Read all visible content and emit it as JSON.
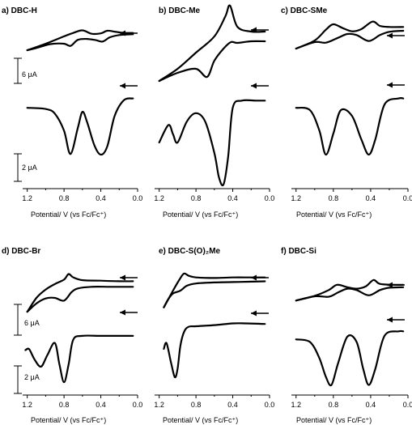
{
  "chart_data": [
    {
      "panel": "a",
      "title": "a) DBC-H",
      "type": "line",
      "xlabel": "Potential/ V (vs Fc/Fc⁺)",
      "xlim": [
        1.25,
        0.0
      ],
      "x_ticks": [
        "1.2",
        "0.8",
        "0.4",
        "0.0"
      ],
      "scale_bars": [
        "6 μA",
        "2 μA"
      ],
      "series": [
        {
          "kind": "cv_forward",
          "x": [
            1.2,
            1.0,
            0.8,
            0.7,
            0.6,
            0.5,
            0.4,
            0.33,
            0.25,
            0.15,
            0.05
          ],
          "y": [
            -3.0,
            -1.5,
            0.2,
            1.0,
            1.6,
            0.8,
            0.9,
            1.5,
            1.3,
            1.0,
            1.0
          ]
        },
        {
          "kind": "cv_reverse",
          "x": [
            0.05,
            0.2,
            0.3,
            0.38,
            0.45,
            0.55,
            0.65,
            0.73,
            0.8,
            0.95,
            1.1,
            1.2
          ],
          "y": [
            0.7,
            0.5,
            0.0,
            -1.0,
            -0.7,
            -0.4,
            -0.6,
            -2.0,
            -1.5,
            -1.6,
            -2.5,
            -3.0
          ]
        },
        {
          "kind": "dpv",
          "x": [
            1.2,
            1.0,
            0.9,
            0.8,
            0.73,
            0.65,
            0.6,
            0.55,
            0.47,
            0.4,
            0.33,
            0.25,
            0.15,
            0.05
          ],
          "y": [
            -1.6,
            -1.8,
            -2.6,
            -5.5,
            -9.5,
            -5.0,
            -2.3,
            -4.0,
            -8.0,
            -9.6,
            -8.2,
            -3.0,
            -0.3,
            0.0
          ]
        }
      ]
    },
    {
      "panel": "b",
      "title": "b) DBC-Me",
      "type": "line",
      "xlabel": "Potential/ V (vs Fc/Fc⁺)",
      "xlim": [
        1.25,
        0.0
      ],
      "x_ticks": [
        "1.2",
        "0.8",
        "0.4",
        "0.0"
      ],
      "series": [
        {
          "kind": "cv_forward",
          "x": [
            1.2,
            1.0,
            0.8,
            0.6,
            0.48,
            0.43,
            0.35,
            0.2,
            0.05
          ],
          "y": [
            -5.5,
            -4.0,
            -2.0,
            0.0,
            2.5,
            3.8,
            1.2,
            0.6,
            0.6
          ]
        },
        {
          "kind": "cv_reverse",
          "x": [
            0.05,
            0.2,
            0.35,
            0.42,
            0.5,
            0.6,
            0.68,
            0.8,
            1.0,
            1.2
          ],
          "y": [
            -0.6,
            -0.6,
            -0.8,
            -0.7,
            -1.5,
            -3.0,
            -5.0,
            -4.0,
            -4.5,
            -5.5
          ]
        },
        {
          "kind": "dpv",
          "x": [
            1.2,
            1.1,
            1.05,
            1.0,
            0.9,
            0.8,
            0.7,
            0.6,
            0.55,
            0.5,
            0.45,
            0.4,
            0.3,
            0.15,
            0.05
          ],
          "y": [
            -6.0,
            -3.5,
            -4.8,
            -6.0,
            -3.0,
            -1.8,
            -3.0,
            -7.5,
            -11.0,
            -12.0,
            -8.0,
            -1.0,
            0.0,
            0.0,
            0.0
          ]
        }
      ]
    },
    {
      "panel": "c",
      "title": "c) DBC-SMe",
      "type": "line",
      "xlabel": "Potential/ V (vs Fc/Fc⁺)",
      "xlim": [
        1.25,
        0.0
      ],
      "x_ticks": [
        "1.2",
        "0.8",
        "0.4",
        "0.0"
      ],
      "series": [
        {
          "kind": "cv_forward",
          "x": [
            1.2,
            1.0,
            0.88,
            0.8,
            0.7,
            0.6,
            0.5,
            0.38,
            0.3,
            0.2,
            0.05
          ],
          "y": [
            -3.0,
            -1.5,
            0.5,
            1.5,
            0.8,
            0.2,
            0.6,
            2.0,
            1.2,
            1.0,
            1.0
          ]
        },
        {
          "kind": "cv_reverse",
          "x": [
            0.05,
            0.2,
            0.3,
            0.42,
            0.55,
            0.65,
            0.75,
            0.88,
            1.0,
            1.2
          ],
          "y": [
            0.3,
            0.1,
            -0.5,
            -1.6,
            -0.5,
            -0.3,
            -1.0,
            -1.9,
            -1.8,
            -3.0
          ]
        },
        {
          "kind": "dpv",
          "x": [
            1.2,
            1.05,
            0.95,
            0.88,
            0.8,
            0.72,
            0.6,
            0.5,
            0.42,
            0.35,
            0.25,
            0.1,
            0.05
          ],
          "y": [
            -1.6,
            -2.0,
            -5.5,
            -9.6,
            -6.0,
            -2.0,
            -3.0,
            -7.0,
            -9.6,
            -7.0,
            -1.0,
            0.0,
            0.0
          ]
        }
      ]
    },
    {
      "panel": "d",
      "title": "d) DBC-Br",
      "type": "line",
      "xlabel": "Potential/ V (vs Fc/Fc⁺)",
      "xlim": [
        1.25,
        0.0
      ],
      "x_ticks": [
        "1.2",
        "0.8",
        "0.4",
        "0.0"
      ],
      "scale_bars": [
        "6 μA",
        "2 μA"
      ],
      "series": [
        {
          "kind": "cv_forward",
          "x": [
            1.2,
            1.1,
            1.0,
            0.9,
            0.8,
            0.75,
            0.7,
            0.6,
            0.4,
            0.2,
            0.05
          ],
          "y": [
            -5.0,
            -2.5,
            -1.0,
            0.0,
            0.8,
            1.8,
            1.2,
            0.7,
            0.6,
            0.5,
            0.5
          ]
        },
        {
          "kind": "cv_reverse",
          "x": [
            0.05,
            0.3,
            0.5,
            0.65,
            0.72,
            0.8,
            0.9,
            1.0,
            1.1,
            1.2
          ],
          "y": [
            -0.5,
            -0.5,
            -0.5,
            -0.8,
            -1.5,
            -3.0,
            -2.5,
            -2.6,
            -3.5,
            -5.0
          ]
        },
        {
          "kind": "dpv",
          "x": [
            1.22,
            1.18,
            1.12,
            1.05,
            0.98,
            0.9,
            0.85,
            0.8,
            0.75,
            0.7,
            0.6,
            0.4,
            0.2,
            0.05
          ],
          "y": [
            -3.0,
            -2.8,
            -5.0,
            -6.5,
            -4.0,
            -1.5,
            -6.0,
            -9.8,
            -6.0,
            -0.8,
            0.0,
            0.0,
            0.0,
            0.0
          ]
        }
      ]
    },
    {
      "panel": "e",
      "title": "e) DBC-S(O)₂Me",
      "type": "line",
      "xlabel": "Potential/ V (vs Fc/Fc⁺)",
      "xlim": [
        1.25,
        0.0
      ],
      "x_ticks": [
        "1.2",
        "0.8",
        "0.4",
        "0.0"
      ],
      "series": [
        {
          "kind": "cv_forward",
          "x": [
            1.15,
            1.05,
            0.98,
            0.93,
            0.88,
            0.8,
            0.6,
            0.4,
            0.2,
            0.05
          ],
          "y": [
            -4.5,
            -1.5,
            0.5,
            1.6,
            1.2,
            0.9,
            0.8,
            0.9,
            0.9,
            0.9
          ]
        },
        {
          "kind": "cv_reverse",
          "x": [
            0.05,
            0.3,
            0.6,
            0.8,
            0.9,
            0.97,
            1.05,
            1.1,
            1.15
          ],
          "y": [
            0.2,
            0.1,
            0.0,
            -0.2,
            -0.6,
            -1.5,
            -2.0,
            -3.0,
            -4.5
          ]
        },
        {
          "kind": "dpv",
          "x": [
            1.15,
            1.12,
            1.07,
            1.03,
            1.0,
            0.97,
            0.93,
            0.88,
            0.8,
            0.6,
            0.4,
            0.25,
            0.05
          ],
          "y": [
            -4.5,
            -3.5,
            -7.0,
            -9.5,
            -8.0,
            -4.0,
            -1.5,
            -0.6,
            -0.5,
            -0.3,
            0.0,
            0.0,
            -0.1
          ]
        }
      ]
    },
    {
      "panel": "f",
      "title": "f) DBC-Si",
      "type": "line",
      "xlabel": "Potential/ V (vs Fc/Fc⁺)",
      "xlim": [
        1.25,
        0.0
      ],
      "x_ticks": [
        "1.2",
        "0.8",
        "0.4",
        "0.0"
      ],
      "series": [
        {
          "kind": "cv_forward",
          "x": [
            1.2,
            1.0,
            0.85,
            0.76,
            0.65,
            0.55,
            0.45,
            0.37,
            0.3,
            0.15,
            0.05
          ],
          "y": [
            -2.5,
            -1.5,
            -0.3,
            0.8,
            0.3,
            0.0,
            0.5,
            1.8,
            1.0,
            0.8,
            0.8
          ]
        },
        {
          "kind": "cv_reverse",
          "x": [
            0.05,
            0.2,
            0.3,
            0.42,
            0.55,
            0.65,
            0.75,
            0.85,
            1.0,
            1.2
          ],
          "y": [
            0.3,
            0.2,
            -0.3,
            -1.4,
            -0.3,
            0.0,
            -0.8,
            -1.7,
            -1.6,
            -2.5
          ]
        },
        {
          "kind": "dpv",
          "x": [
            1.2,
            1.05,
            0.95,
            0.88,
            0.82,
            0.75,
            0.65,
            0.55,
            0.48,
            0.42,
            0.35,
            0.25,
            0.1,
            0.05
          ],
          "y": [
            -1.5,
            -2.0,
            -5.0,
            -8.5,
            -10.0,
            -6.0,
            -1.0,
            -2.0,
            -7.0,
            -10.0,
            -7.0,
            -0.8,
            0.0,
            0.0
          ]
        }
      ]
    }
  ]
}
